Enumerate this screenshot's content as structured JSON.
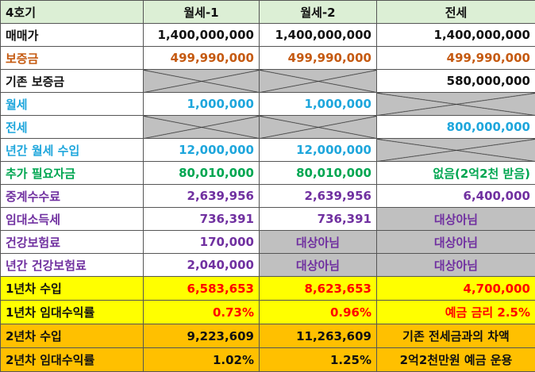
{
  "table": {
    "header": [
      "4호기",
      "월세-1",
      "월세-2",
      "전세"
    ],
    "rows": [
      [
        "매매가",
        "1,400,000,000",
        "1,400,000,000",
        "1,400,000,000"
      ],
      [
        "보증금",
        "499,990,000",
        "499,990,000",
        "499,990,000"
      ],
      [
        "기존 보증금",
        null,
        null,
        "580,000,000"
      ],
      [
        "월세",
        "1,000,000",
        "1,000,000",
        null
      ],
      [
        "전세",
        null,
        null,
        "800,000,000"
      ],
      [
        "년간 월세 수입",
        "12,000,000",
        "12,000,000",
        null
      ],
      [
        "추가 필요자금",
        "80,010,000",
        "80,010,000",
        "없음(2억2천 받음)"
      ],
      [
        "중계수수료",
        "2,639,956",
        "2,639,956",
        "6,400,000"
      ],
      [
        "임대소득세",
        "736,391",
        "736,391",
        "대상아님"
      ],
      [
        "건강보험료",
        "170,000",
        "대상아님",
        "대상아님"
      ],
      [
        "년간 건강보험료",
        "2,040,000",
        "대상아님",
        "대상아님"
      ],
      [
        "1년차 수입",
        "6,583,653",
        "8,623,653",
        "4,700,000"
      ],
      [
        "1년차 임대수익률",
        "0.73%",
        "0.96%",
        "예금 금리 2.5%"
      ],
      [
        "2년차 수입",
        "9,223,609",
        "11,263,609",
        "기존 전세금과의 차액"
      ],
      [
        "2년차 임대수익률",
        "1.02%",
        "1.25%",
        "2억2천만원 예금 운용"
      ]
    ]
  }
}
